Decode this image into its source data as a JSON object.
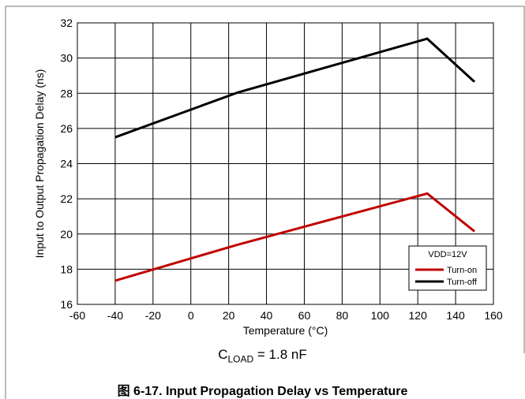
{
  "chart_data": {
    "type": "line",
    "title": "",
    "xlabel": "Temperature (°C)",
    "ylabel": "Input to Output Propagation Delay (ns)",
    "xlim": [
      -60,
      160
    ],
    "ylim": [
      16,
      32
    ],
    "xticks": [
      -60,
      -40,
      -20,
      0,
      20,
      40,
      60,
      80,
      100,
      120,
      140,
      160
    ],
    "yticks": [
      16,
      18,
      20,
      22,
      24,
      26,
      28,
      30,
      32
    ],
    "grid": true,
    "legend_position": "bottom-right",
    "legend_title": "VDD=12V",
    "series": [
      {
        "name": "Turn-on",
        "color": "#c00000",
        "x": [
          -40,
          25,
          125,
          150
        ],
        "y": [
          17.35,
          19.4,
          22.3,
          20.15
        ]
      },
      {
        "name": "Turn-off",
        "color": "#000000",
        "x": [
          -40,
          25,
          125,
          150
        ],
        "y": [
          25.5,
          28.05,
          31.1,
          28.65
        ]
      }
    ]
  },
  "condition": {
    "prefix": "C",
    "subscript": "LOAD",
    "suffix": " = 1.8 nF"
  },
  "caption": "图 6-17. Input Propagation Delay vs Temperature"
}
